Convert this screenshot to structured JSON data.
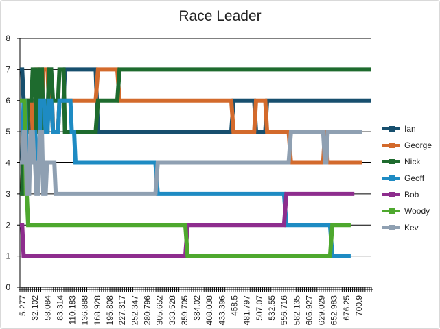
{
  "chart_data": {
    "type": "line",
    "title": "Race Leader",
    "xlabel": "",
    "ylabel": "",
    "ylim": [
      0,
      8
    ],
    "yticks": [
      "0",
      "1",
      "2",
      "3",
      "4",
      "5",
      "6",
      "7",
      "8"
    ],
    "grid": true,
    "legend_position": "right",
    "x_tick_labels": [
      "5.277",
      "32.102",
      "58.084",
      "83.314",
      "110.183",
      "136.888",
      "168.928",
      "195.808",
      "227.317",
      "252.347",
      "280.796",
      "305.652",
      "333.528",
      "359.705",
      "384.02",
      "408.038",
      "433.396",
      "458.5",
      "481.797",
      "507.07",
      "532.55",
      "556.716",
      "582.135",
      "605.927",
      "629.029",
      "652.983",
      "676.25",
      "700.9"
    ],
    "x_range": [
      0,
      765
    ],
    "series": [
      {
        "name": "Ian",
        "color": "#174F6E",
        "points": [
          [
            0,
            7
          ],
          [
            5,
            7
          ],
          [
            8,
            6
          ],
          [
            15,
            6
          ],
          [
            18,
            5
          ],
          [
            25,
            5
          ],
          [
            28,
            6
          ],
          [
            33,
            6
          ],
          [
            36,
            5
          ],
          [
            39,
            5
          ],
          [
            42,
            7
          ],
          [
            48,
            7
          ],
          [
            51,
            5
          ],
          [
            60,
            5
          ],
          [
            63,
            7
          ],
          [
            68,
            7
          ],
          [
            72,
            5
          ],
          [
            83,
            5
          ],
          [
            86,
            6
          ],
          [
            95,
            6
          ],
          [
            98,
            7
          ],
          [
            165,
            7
          ],
          [
            170,
            5
          ],
          [
            460,
            5
          ],
          [
            465,
            6
          ],
          [
            510,
            6
          ],
          [
            514,
            5
          ],
          [
            534,
            5
          ],
          [
            538,
            6
          ],
          [
            765,
            6
          ]
        ]
      },
      {
        "name": "George",
        "color": "#D36A2C",
        "points": [
          [
            0,
            3
          ],
          [
            5,
            3
          ],
          [
            8,
            5
          ],
          [
            15,
            5
          ],
          [
            18,
            6
          ],
          [
            25,
            6
          ],
          [
            28,
            5
          ],
          [
            33,
            5
          ],
          [
            36,
            7
          ],
          [
            39,
            7
          ],
          [
            42,
            6
          ],
          [
            48,
            6
          ],
          [
            51,
            7
          ],
          [
            60,
            7
          ],
          [
            63,
            6
          ],
          [
            68,
            6
          ],
          [
            72,
            5
          ],
          [
            83,
            5
          ],
          [
            86,
            6
          ],
          [
            95,
            6
          ],
          [
            98,
            6
          ],
          [
            165,
            6
          ],
          [
            170,
            7
          ],
          [
            212,
            7
          ],
          [
            217,
            6
          ],
          [
            460,
            6
          ],
          [
            465,
            5
          ],
          [
            510,
            5
          ],
          [
            514,
            6
          ],
          [
            534,
            6
          ],
          [
            538,
            5
          ],
          [
            585,
            5
          ],
          [
            590,
            4
          ],
          [
            660,
            4
          ],
          [
            664,
            5
          ],
          [
            667,
            5
          ],
          [
            670,
            4
          ],
          [
            745,
            4
          ]
        ]
      },
      {
        "name": "Nick",
        "color": "#1E6B2E",
        "points": [
          [
            0,
            3
          ],
          [
            5,
            3
          ],
          [
            8,
            5
          ],
          [
            15,
            5
          ],
          [
            18,
            6
          ],
          [
            25,
            6
          ],
          [
            28,
            7
          ],
          [
            33,
            7
          ],
          [
            36,
            5
          ],
          [
            39,
            5
          ],
          [
            42,
            7
          ],
          [
            48,
            7
          ],
          [
            51,
            5
          ],
          [
            60,
            5
          ],
          [
            63,
            7
          ],
          [
            68,
            7
          ],
          [
            72,
            6
          ],
          [
            83,
            6
          ],
          [
            86,
            7
          ],
          [
            95,
            7
          ],
          [
            98,
            5
          ],
          [
            165,
            5
          ],
          [
            170,
            6
          ],
          [
            212,
            6
          ],
          [
            217,
            7
          ],
          [
            765,
            7
          ]
        ]
      },
      {
        "name": "Geoff",
        "color": "#1E8BC3",
        "points": [
          [
            0,
            4
          ],
          [
            5,
            4
          ],
          [
            8,
            6
          ],
          [
            12,
            6
          ],
          [
            15,
            4
          ],
          [
            22,
            4
          ],
          [
            25,
            5
          ],
          [
            33,
            5
          ],
          [
            36,
            4
          ],
          [
            42,
            4
          ],
          [
            45,
            6
          ],
          [
            53,
            6
          ],
          [
            56,
            5
          ],
          [
            60,
            5
          ],
          [
            63,
            6
          ],
          [
            68,
            6
          ],
          [
            72,
            5
          ],
          [
            83,
            5
          ],
          [
            86,
            6
          ],
          [
            95,
            6
          ],
          [
            98,
            6
          ],
          [
            110,
            6
          ],
          [
            113,
            5
          ],
          [
            118,
            5
          ],
          [
            121,
            4
          ],
          [
            295,
            4
          ],
          [
            300,
            3
          ],
          [
            575,
            3
          ],
          [
            580,
            2
          ],
          [
            675,
            2
          ],
          [
            680,
            1
          ],
          [
            720,
            1
          ]
        ]
      },
      {
        "name": "Bob",
        "color": "#8E2D8E",
        "points": [
          [
            0,
            2
          ],
          [
            5,
            2
          ],
          [
            8,
            1
          ],
          [
            360,
            1
          ],
          [
            365,
            2
          ],
          [
            575,
            2
          ],
          [
            580,
            3
          ],
          [
            728,
            3
          ]
        ]
      },
      {
        "name": "Woody",
        "color": "#4EA82E",
        "points": [
          [
            0,
            6
          ],
          [
            10,
            6
          ],
          [
            13,
            3
          ],
          [
            15,
            3
          ],
          [
            18,
            2
          ],
          [
            360,
            2
          ],
          [
            365,
            1
          ],
          [
            675,
            1
          ],
          [
            680,
            2
          ],
          [
            720,
            2
          ]
        ]
      },
      {
        "name": "Kev",
        "color": "#8FA0B2",
        "points": [
          [
            0,
            4
          ],
          [
            5,
            4
          ],
          [
            8,
            5
          ],
          [
            12,
            5
          ],
          [
            15,
            3
          ],
          [
            20,
            3
          ],
          [
            23,
            5
          ],
          [
            28,
            5
          ],
          [
            31,
            4
          ],
          [
            33,
            4
          ],
          [
            36,
            3
          ],
          [
            40,
            3
          ],
          [
            43,
            5
          ],
          [
            48,
            5
          ],
          [
            51,
            3
          ],
          [
            56,
            3
          ],
          [
            59,
            4
          ],
          [
            75,
            4
          ],
          [
            78,
            3
          ],
          [
            295,
            3
          ],
          [
            300,
            4
          ],
          [
            585,
            4
          ],
          [
            590,
            5
          ],
          [
            660,
            5
          ],
          [
            664,
            4
          ],
          [
            667,
            4
          ],
          [
            670,
            5
          ],
          [
            745,
            5
          ]
        ]
      }
    ]
  }
}
